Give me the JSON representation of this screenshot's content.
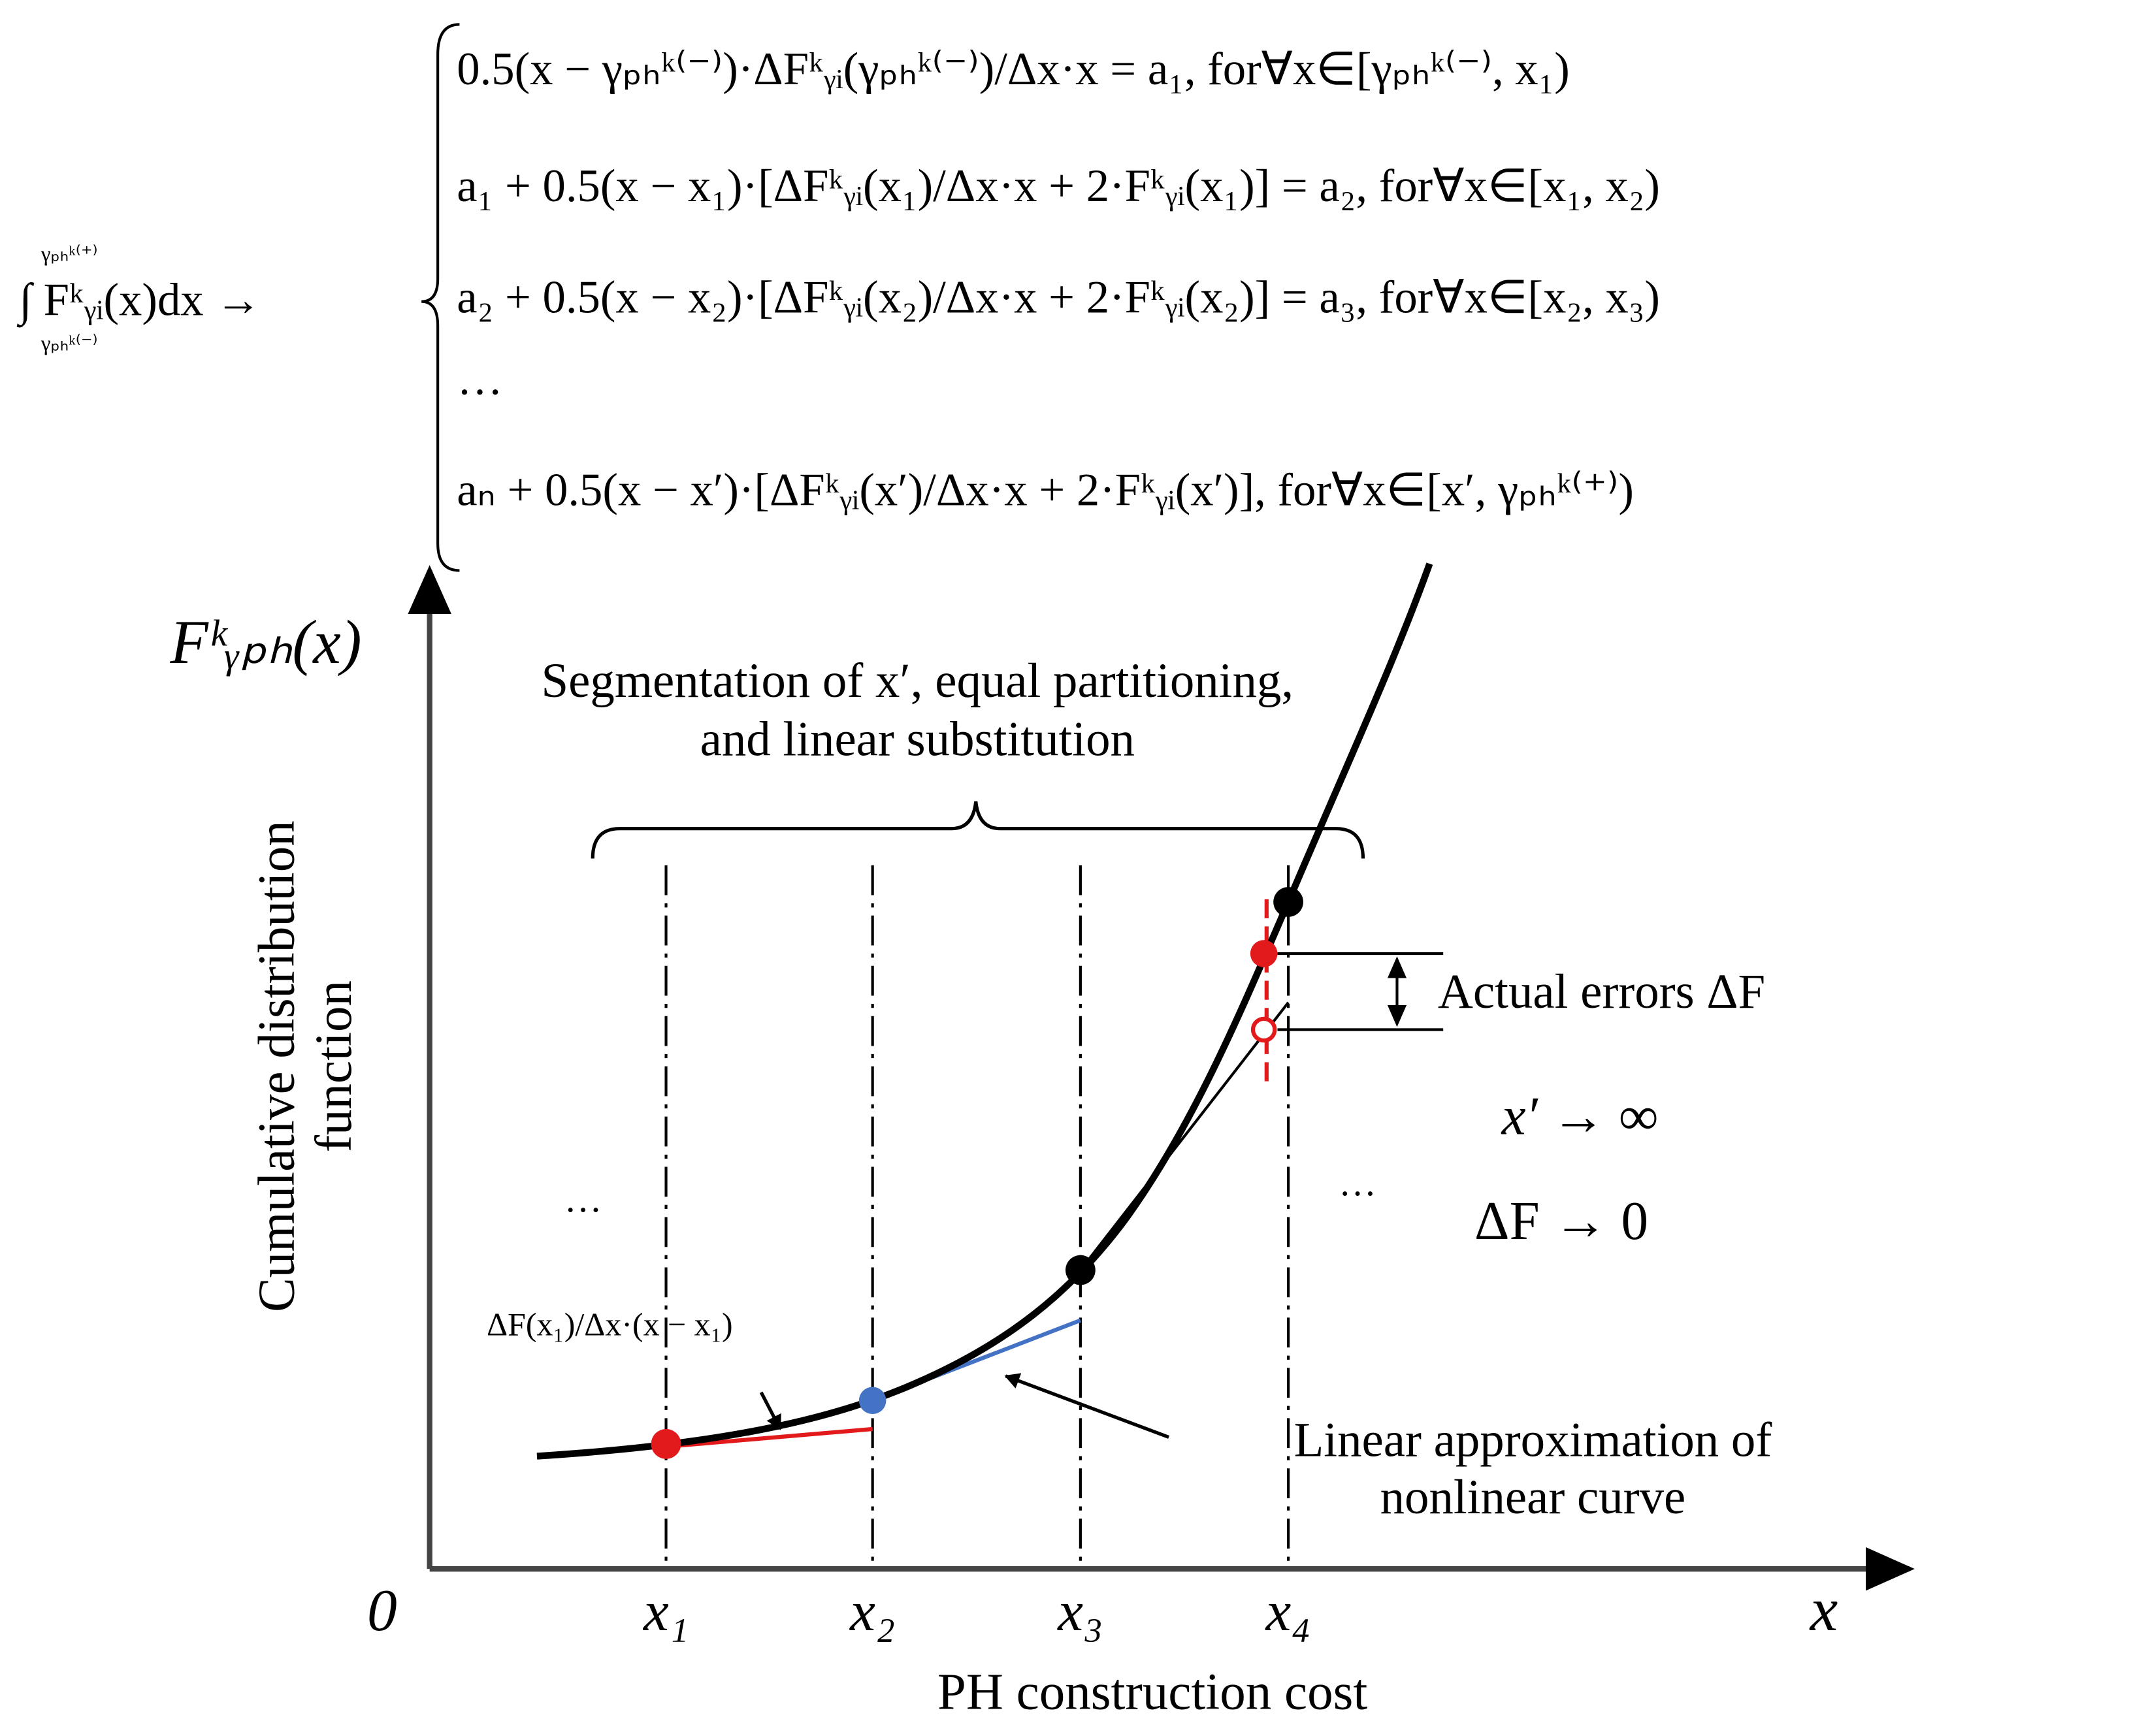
{
  "integral": "∫ Fᵏᵧᵢ(x)dx →",
  "integral_upper": "γₚₕᵏ⁽⁺⁾",
  "integral_lower": "γₚₕᵏ⁽⁻⁾",
  "equations": [
    "0.5(x − γₚₕᵏ⁽⁻⁾)·ΔFᵏᵧᵢ(γₚₕᵏ⁽⁻⁾)/Δx·x = a₁,  for∀x∈[γₚₕᵏ⁽⁻⁾, x₁)",
    "a₁ + 0.5(x − x₁)·[ΔFᵏᵧᵢ(x₁)/Δx·x + 2·Fᵏᵧᵢ(x₁)] = a₂,  for∀x∈[x₁, x₂)",
    "a₂ + 0.5(x − x₂)·[ΔFᵏᵧᵢ(x₂)/Δx·x + 2·Fᵏᵧᵢ(x₂)] = a₃,  for∀x∈[x₂, x₃)",
    "···",
    "aₙ + 0.5(x − x′)·[ΔFᵏᵧᵢ(x′)/Δx·x + 2·Fᵏᵧᵢ(x′)],  for∀x∈[x′, γₚₕᵏ⁽⁺⁾)"
  ],
  "y_axis_symbol": "Fᵏᵧₚₕ(x)",
  "y_axis_label": [
    "Cumulative distribution",
    "function"
  ],
  "x_axis_label": "PH construction cost",
  "origin": "0",
  "x_symbol": "x",
  "x_ticks": [
    "x₁",
    "x₂",
    "x₃",
    "x₄"
  ],
  "brace_label": [
    "Segmentation of x′, equal partitioning,",
    "and linear substitution"
  ],
  "error_label": "Actual errors ΔF",
  "limit_x": "x′ → ∞",
  "limit_f": "ΔF → 0",
  "ellipsis_left": "···",
  "ellipsis_right": "···",
  "tangent_label": "ΔF(x₁)/Δx·(x − x₁)",
  "approx_label": [
    "Linear approximation of",
    "nonlinear curve"
  ]
}
